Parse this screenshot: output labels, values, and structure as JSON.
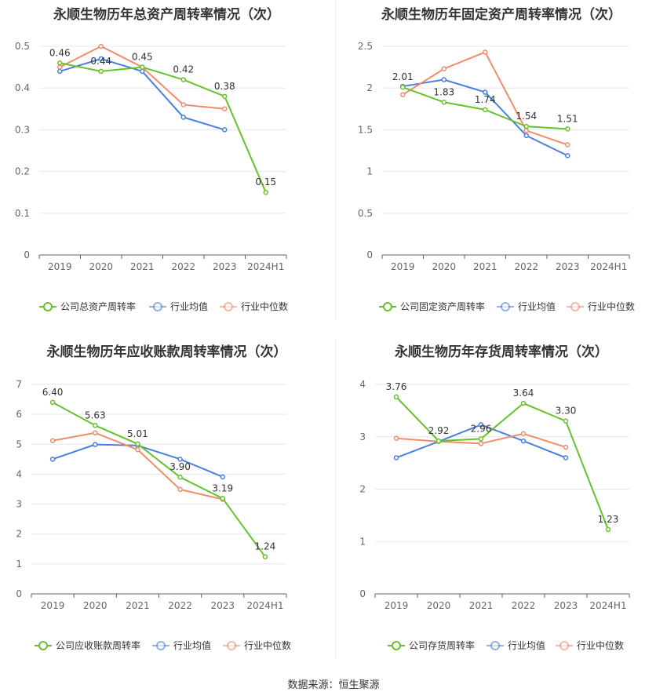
{
  "source": "数据来源：恒生聚源",
  "colors": {
    "company": "#66c22b",
    "avg": "#4a7fe0",
    "median": "#f08c6c"
  },
  "chart_data": [
    {
      "type": "line",
      "title": "永顺生物历年总资产周转率情况（次）",
      "categories": [
        "2019",
        "2020",
        "2021",
        "2022",
        "2023",
        "2024H1"
      ],
      "ylim": [
        0,
        0.5
      ],
      "yticks": [
        0,
        0.1,
        0.2,
        0.3,
        0.4,
        0.5
      ],
      "ytick_labels": [
        "0",
        "0.1",
        "0.2",
        "0.3",
        "0.4",
        "0.5"
      ],
      "grid": true,
      "legend_position": "bottom",
      "series": [
        {
          "name": "公司总资产周转率",
          "key": "company",
          "values": [
            0.46,
            0.44,
            0.45,
            0.42,
            0.38,
            0.15
          ],
          "labels": [
            "0.46",
            "0.44",
            "0.45",
            "0.42",
            "0.38",
            "0.15"
          ]
        },
        {
          "name": "行业均值",
          "key": "avg",
          "values": [
            0.44,
            0.47,
            0.44,
            0.33,
            0.3,
            null
          ]
        },
        {
          "name": "行业中位数",
          "key": "median",
          "values": [
            0.45,
            0.5,
            0.45,
            0.36,
            0.35,
            null
          ]
        }
      ]
    },
    {
      "type": "line",
      "title": "永顺生物历年固定资产周转率情况（次）",
      "categories": [
        "2019",
        "2020",
        "2021",
        "2022",
        "2023",
        "2024H1"
      ],
      "ylim": [
        0,
        2.5
      ],
      "yticks": [
        0,
        0.5,
        1,
        1.5,
        2,
        2.5
      ],
      "ytick_labels": [
        "0",
        "0.5",
        "1",
        "1.5",
        "2",
        "2.5"
      ],
      "grid": true,
      "legend_position": "bottom",
      "series": [
        {
          "name": "公司固定资产周转率",
          "key": "company",
          "values": [
            2.01,
            1.83,
            1.74,
            1.54,
            1.51,
            null
          ],
          "labels": [
            "2.01",
            "1.83",
            "1.74",
            "1.54",
            "1.51",
            ""
          ]
        },
        {
          "name": "行业均值",
          "key": "avg",
          "values": [
            2.02,
            2.1,
            1.95,
            1.43,
            1.19,
            null
          ]
        },
        {
          "name": "行业中位数",
          "key": "median",
          "values": [
            1.92,
            2.23,
            2.43,
            1.49,
            1.32,
            null
          ]
        }
      ]
    },
    {
      "type": "line",
      "title": "永顺生物历年应收账款周转率情况（次）",
      "categories": [
        "2019",
        "2020",
        "2021",
        "2022",
        "2023",
        "2024H1"
      ],
      "ylim": [
        0,
        7
      ],
      "yticks": [
        0,
        1,
        2,
        3,
        4,
        5,
        6,
        7
      ],
      "ytick_labels": [
        "0",
        "1",
        "2",
        "3",
        "4",
        "5",
        "6",
        "7"
      ],
      "grid": true,
      "legend_position": "bottom",
      "series": [
        {
          "name": "公司应收账款周转率",
          "key": "company",
          "values": [
            6.4,
            5.63,
            5.01,
            3.9,
            3.19,
            1.24
          ],
          "labels": [
            "6.40",
            "5.63",
            "5.01",
            "3.90",
            "3.19",
            "1.24"
          ]
        },
        {
          "name": "行业均值",
          "key": "avg",
          "values": [
            4.5,
            4.99,
            4.96,
            4.5,
            3.91,
            null
          ]
        },
        {
          "name": "行业中位数",
          "key": "median",
          "values": [
            5.12,
            5.38,
            4.82,
            3.49,
            3.16,
            null
          ]
        }
      ]
    },
    {
      "type": "line",
      "title": "永顺生物历年存货周转率情况（次）",
      "categories": [
        "2019",
        "2020",
        "2021",
        "2022",
        "2023",
        "2024H1"
      ],
      "ylim": [
        0,
        4
      ],
      "yticks": [
        0,
        1,
        2,
        3,
        4
      ],
      "ytick_labels": [
        "0",
        "1",
        "2",
        "3",
        "4"
      ],
      "grid": true,
      "legend_position": "bottom",
      "series": [
        {
          "name": "公司存货周转率",
          "key": "company",
          "values": [
            3.76,
            2.92,
            2.96,
            3.64,
            3.3,
            1.23
          ],
          "labels": [
            "3.76",
            "2.92",
            "2.96",
            "3.64",
            "3.30",
            "1.23"
          ]
        },
        {
          "name": "行业均值",
          "key": "avg",
          "values": [
            2.6,
            2.91,
            3.23,
            2.92,
            2.6,
            null
          ]
        },
        {
          "name": "行业中位数",
          "key": "median",
          "values": [
            2.97,
            2.91,
            2.87,
            3.06,
            2.8,
            null
          ]
        }
      ]
    }
  ]
}
